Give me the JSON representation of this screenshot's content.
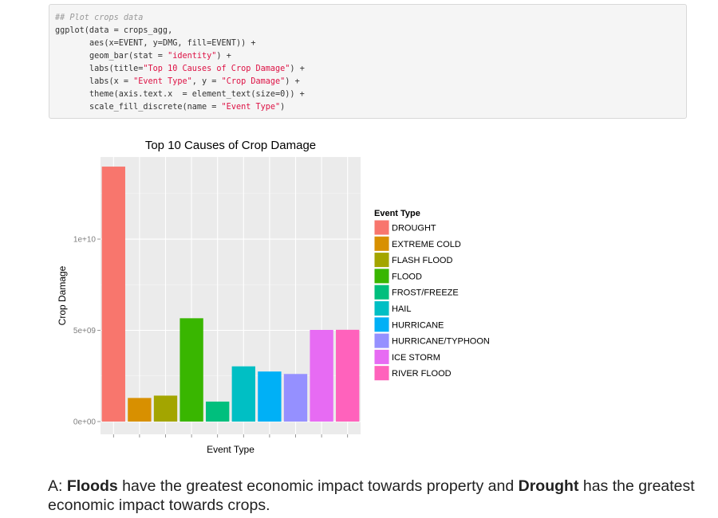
{
  "code": {
    "lines": [
      {
        "indent": "",
        "parts": [
          {
            "t": "## Plot crops data",
            "c": "cmt"
          }
        ]
      },
      {
        "indent": "",
        "parts": [
          {
            "t": "ggplot(data = crops_agg,",
            "c": ""
          }
        ]
      },
      {
        "indent": "       ",
        "parts": [
          {
            "t": "aes(x=EVENT, y=DMG, fill=EVENT)) +",
            "c": ""
          }
        ]
      },
      {
        "indent": "       ",
        "parts": [
          {
            "t": "geom_bar(stat = ",
            "c": ""
          },
          {
            "t": "\"identity\"",
            "c": "str"
          },
          {
            "t": ") +",
            "c": ""
          }
        ]
      },
      {
        "indent": "       ",
        "parts": [
          {
            "t": "labs(title=",
            "c": ""
          },
          {
            "t": "\"Top 10 Causes of Crop Damage\"",
            "c": "str"
          },
          {
            "t": ") +",
            "c": ""
          }
        ]
      },
      {
        "indent": "       ",
        "parts": [
          {
            "t": "labs(x = ",
            "c": ""
          },
          {
            "t": "\"Event Type\"",
            "c": "str"
          },
          {
            "t": ", y = ",
            "c": ""
          },
          {
            "t": "\"Crop Damage\"",
            "c": "str"
          },
          {
            "t": ") +",
            "c": ""
          }
        ]
      },
      {
        "indent": "       ",
        "parts": [
          {
            "t": "theme(axis.text.x  = element_text(size=0)) +",
            "c": ""
          }
        ]
      },
      {
        "indent": "       ",
        "parts": [
          {
            "t": "scale_fill_discrete(name = ",
            "c": ""
          },
          {
            "t": "\"Event Type\"",
            "c": "str"
          },
          {
            "t": ")",
            "c": ""
          }
        ]
      }
    ]
  },
  "chart_data": {
    "type": "bar",
    "title": "Top 10 Causes of Crop Damage",
    "xlabel": "Event Type",
    "ylabel": "Crop Damage",
    "legend_title": "Event Type",
    "legend_position": "right",
    "grid": true,
    "ylim": [
      -700000000.0,
      14500000000.0
    ],
    "yticks": [
      0,
      5000000000.0,
      10000000000.0
    ],
    "ytick_labels": [
      "0e+00",
      "5e+09",
      "1e+10"
    ],
    "categories": [
      "DROUGHT",
      "EXTREME COLD",
      "FLASH FLOOD",
      "FLOOD",
      "FROST/FREEZE",
      "HAIL",
      "HURRICANE",
      "HURRICANE/TYPHOON",
      "ICE STORM",
      "RIVER FLOOD"
    ],
    "values": [
      13972621780,
      1292973000,
      1421317100,
      5661968450,
      1094186000,
      3025954453,
      2741910000,
      2607872800,
      5022113500,
      5029459000
    ],
    "colors": [
      "#F8766D",
      "#D89000",
      "#A3A500",
      "#39B600",
      "#00BF7D",
      "#00BFC4",
      "#00B0F6",
      "#9590FF",
      "#E76BF3",
      "#FF62BC"
    ]
  },
  "answer": {
    "prefix": "A: ",
    "b1": "Floods",
    "mid": " have the greatest economic impact towards property and ",
    "b2": "Drought",
    "suffix": " has the greatest economic impact towards crops."
  }
}
